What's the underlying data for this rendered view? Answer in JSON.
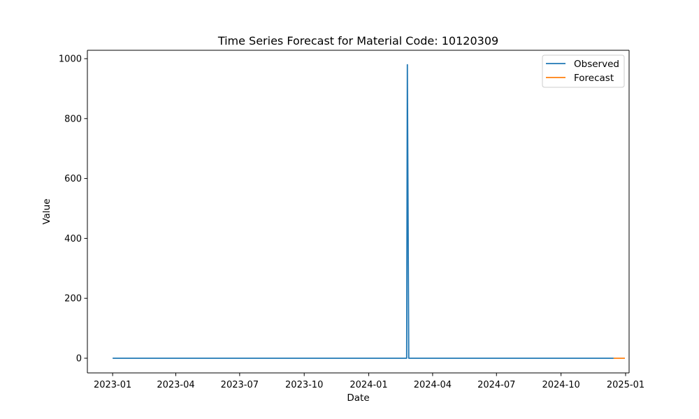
{
  "chart_data": {
    "type": "line",
    "title": "Time Series Forecast for Material Code: 10120309",
    "xlabel": "Date",
    "ylabel": "Value",
    "x_type": "date",
    "xlim": [
      "2022-11-26",
      "2025-01-06"
    ],
    "ylim": [
      -49,
      1028
    ],
    "x_ticks": [
      "2023-01-01",
      "2023-04-01",
      "2023-07-01",
      "2023-10-01",
      "2024-01-01",
      "2024-04-01",
      "2024-07-01",
      "2024-10-01",
      "2025-01-01"
    ],
    "x_tick_labels": [
      "2023-01",
      "2023-04",
      "2023-07",
      "2023-10",
      "2024-01",
      "2024-04",
      "2024-07",
      "2024-10",
      "2025-01"
    ],
    "y_ticks": [
      0,
      200,
      400,
      600,
      800,
      1000
    ],
    "y_tick_labels": [
      "0",
      "200",
      "400",
      "600",
      "800",
      "1000"
    ],
    "grid": false,
    "legend_position": "top-right",
    "series": [
      {
        "name": "Observed",
        "color": "#1f77b4",
        "points": [
          {
            "x": "2023-01-01",
            "y": 0
          },
          {
            "x": "2024-02-24",
            "y": 0
          },
          {
            "x": "2024-02-25",
            "y": 980
          },
          {
            "x": "2024-02-27",
            "y": 0
          },
          {
            "x": "2024-12-15",
            "y": 0
          }
        ]
      },
      {
        "name": "Forecast",
        "color": "#ff7f0e",
        "points": [
          {
            "x": "2024-12-15",
            "y": 0
          },
          {
            "x": "2024-12-31",
            "y": 0
          }
        ]
      }
    ]
  }
}
